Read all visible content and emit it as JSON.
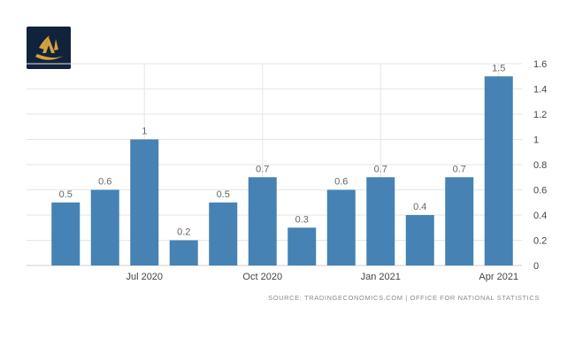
{
  "colors": {
    "bar": "#4682b4",
    "grid": "#e6e6e6",
    "logo_bg": "#11233a",
    "logo_gold": "#d3a33e"
  },
  "logo": {
    "icon": "gold-emblem-logo"
  },
  "chart_data": {
    "type": "bar",
    "values": [
      0.5,
      0.6,
      1,
      0.2,
      0.5,
      0.7,
      0.3,
      0.6,
      0.7,
      0.4,
      0.7,
      1.5
    ],
    "data_labels": [
      "0.5",
      "0.6",
      "1",
      "0.2",
      "0.5",
      "0.7",
      "0.3",
      "0.6",
      "0.7",
      "0.4",
      "0.7",
      "1.5"
    ],
    "x_ticks": [
      {
        "index": 2,
        "label": "Jul 2020"
      },
      {
        "index": 5,
        "label": "Oct 2020"
      },
      {
        "index": 8,
        "label": "Jan 2021"
      },
      {
        "index": 11,
        "label": "Apr 2021"
      }
    ],
    "y_ticks": [
      "0",
      "0.2",
      "0.4",
      "0.6",
      "0.8",
      "1",
      "1.2",
      "1.4",
      "1.6"
    ],
    "ylim": [
      0,
      1.6
    ],
    "grid": true,
    "y_axis_side": "right"
  },
  "source_text": "SOURCE: TRADINGECONOMICS.COM | OFFICE FOR NATIONAL STATISTICS"
}
